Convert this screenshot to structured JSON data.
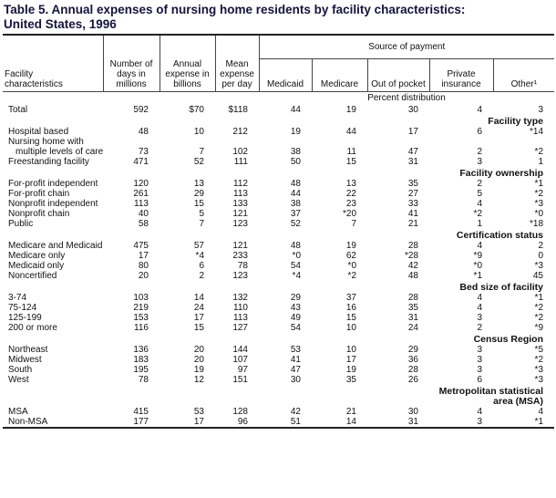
{
  "title_lines": [
    "Table 5.  Annual expenses of nursing home residents by facility characteristics:",
    "United States, 1996"
  ],
  "header": {
    "label": [
      "Facility",
      "characteristics"
    ],
    "days": "Number of days in millions",
    "expense": "Annual expense in billions",
    "mean": "Mean expense per day",
    "source": "Source of payment",
    "payers": [
      "Medicaid",
      "Medicare",
      "Out of pocket",
      "Private insurance",
      "Other¹"
    ],
    "percent": "Percent distribution"
  },
  "total": {
    "label": [
      "Total"
    ],
    "cells": [
      "592",
      "$70",
      "$118",
      "44",
      "19",
      "30",
      "4",
      "3"
    ]
  },
  "sections": [
    {
      "title": [
        "Facility type"
      ],
      "rows": [
        {
          "label": [
            "Hospital based"
          ],
          "cells": [
            "48",
            "10",
            "212",
            "19",
            "44",
            "17",
            "6",
            "*14"
          ]
        },
        {
          "label": [
            "Nursing home with",
            "multiple levels of care"
          ],
          "cells": [
            "73",
            "7",
            "102",
            "38",
            "11",
            "47",
            "2",
            "*2"
          ]
        },
        {
          "label": [
            "Freestanding facility"
          ],
          "cells": [
            "471",
            "52",
            "111",
            "50",
            "15",
            "31",
            "3",
            "1"
          ]
        }
      ]
    },
    {
      "title": [
        "Facility ownership"
      ],
      "rows": [
        {
          "label": [
            "For-profit independent"
          ],
          "cells": [
            "120",
            "13",
            "112",
            "48",
            "13",
            "35",
            "2",
            "*1"
          ]
        },
        {
          "label": [
            "For-profit chain"
          ],
          "cells": [
            "261",
            "29",
            "113",
            "44",
            "22",
            "27",
            "5",
            "*2"
          ]
        },
        {
          "label": [
            "Nonprofit independent"
          ],
          "cells": [
            "113",
            "15",
            "133",
            "38",
            "23",
            "33",
            "4",
            "*3"
          ]
        },
        {
          "label": [
            "Nonprofit chain"
          ],
          "cells": [
            "40",
            "5",
            "121",
            "37",
            "*20",
            "41",
            "*2",
            "*0"
          ]
        },
        {
          "label": [
            "Public"
          ],
          "cells": [
            "58",
            "7",
            "123",
            "52",
            "7",
            "21",
            "1",
            "*18"
          ]
        }
      ]
    },
    {
      "title": [
        "Certification status"
      ],
      "rows": [
        {
          "label": [
            "Medicare and Medicaid"
          ],
          "cells": [
            "475",
            "57",
            "121",
            "48",
            "19",
            "28",
            "4",
            "2"
          ]
        },
        {
          "label": [
            "Medicare only"
          ],
          "cells": [
            "17",
            "*4",
            "233",
            "*0",
            "62",
            "*28",
            "*9",
            "0"
          ]
        },
        {
          "label": [
            "Medicaid only"
          ],
          "cells": [
            "80",
            "6",
            "78",
            "54",
            "*0",
            "42",
            "*0",
            "*3"
          ]
        },
        {
          "label": [
            "Noncertified"
          ],
          "cells": [
            "20",
            "2",
            "123",
            "*4",
            "*2",
            "48",
            "*1",
            "45"
          ]
        }
      ]
    },
    {
      "title": [
        "Bed size of facility"
      ],
      "rows": [
        {
          "label": [
            "3-74"
          ],
          "cells": [
            "103",
            "14",
            "132",
            "29",
            "37",
            "28",
            "4",
            "*1"
          ]
        },
        {
          "label": [
            "75-124"
          ],
          "cells": [
            "219",
            "24",
            "110",
            "43",
            "16",
            "35",
            "4",
            "*2"
          ]
        },
        {
          "label": [
            "125-199"
          ],
          "cells": [
            "153",
            "17",
            "113",
            "49",
            "15",
            "31",
            "3",
            "*2"
          ]
        },
        {
          "label": [
            "200 or more"
          ],
          "cells": [
            "116",
            "15",
            "127",
            "54",
            "10",
            "24",
            "2",
            "*9"
          ]
        }
      ]
    },
    {
      "title": [
        "Census Region"
      ],
      "rows": [
        {
          "label": [
            "Northeast"
          ],
          "cells": [
            "136",
            "20",
            "144",
            "53",
            "10",
            "29",
            "3",
            "*5"
          ]
        },
        {
          "label": [
            "Midwest"
          ],
          "cells": [
            "183",
            "20",
            "107",
            "41",
            "17",
            "36",
            "3",
            "*2"
          ]
        },
        {
          "label": [
            "South"
          ],
          "cells": [
            "195",
            "19",
            "97",
            "47",
            "19",
            "28",
            "3",
            "*3"
          ]
        },
        {
          "label": [
            "West"
          ],
          "cells": [
            "78",
            "12",
            "151",
            "30",
            "35",
            "26",
            "6",
            "*3"
          ]
        }
      ]
    },
    {
      "title": [
        "Metropolitan statistical",
        "area (MSA)"
      ],
      "rows": [
        {
          "label": [
            "MSA"
          ],
          "cells": [
            "415",
            "53",
            "128",
            "42",
            "21",
            "30",
            "4",
            "4"
          ]
        },
        {
          "label": [
            "Non-MSA"
          ],
          "cells": [
            "177",
            "17",
            "96",
            "51",
            "14",
            "31",
            "3",
            "*1"
          ]
        }
      ]
    }
  ]
}
